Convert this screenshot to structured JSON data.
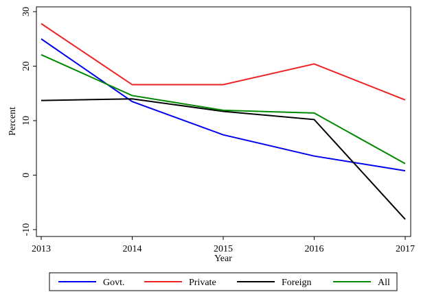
{
  "chart_data": {
    "type": "line",
    "x": [
      2013,
      2014,
      2015,
      2016,
      2017
    ],
    "xlim": [
      2013,
      2017
    ],
    "xticks": [
      2013,
      2014,
      2015,
      2016,
      2017
    ],
    "ylim": [
      -10,
      30
    ],
    "yticks": [
      -10,
      0,
      10,
      20,
      30
    ],
    "x_label": "Year",
    "y_label": "Percent",
    "series": [
      {
        "name": "Govt.",
        "color": "#0000ee",
        "values": [
          25,
          13.5,
          7.4,
          3.5,
          0.8
        ]
      },
      {
        "name": "Private",
        "color": "#ee2222",
        "values": [
          27.8,
          16.6,
          16.6,
          20.4,
          13.8
        ]
      },
      {
        "name": "Foreign",
        "color": "#000000",
        "values": [
          13.7,
          14,
          11.7,
          10.2,
          -8.1
        ]
      },
      {
        "name": "All",
        "color": "#008800",
        "values": [
          22.1,
          14.6,
          11.9,
          11.4,
          2.1
        ]
      }
    ]
  }
}
